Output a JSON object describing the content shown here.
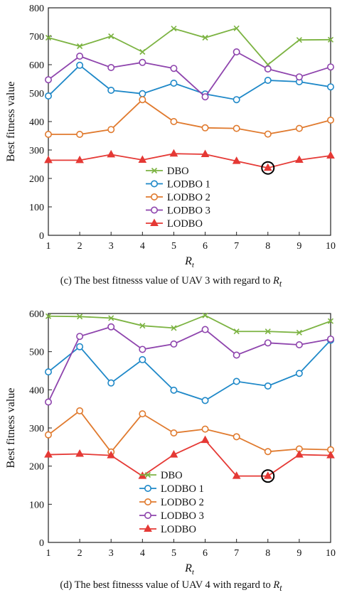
{
  "chart_data": [
    {
      "type": "line",
      "caption_main": "(c) The best fitnesss value of UAV 3 with regard to ",
      "caption_var": "R",
      "caption_sub": "t",
      "xlabel": "R",
      "xlabel_sub": "t",
      "ylabel": "Best fitness value",
      "x": [
        1,
        2,
        3,
        4,
        5,
        6,
        7,
        8,
        9,
        10
      ],
      "xlim": [
        1,
        10
      ],
      "ylim": [
        0,
        800
      ],
      "yticks": [
        0,
        100,
        200,
        300,
        400,
        500,
        600,
        700,
        800
      ],
      "grid": false,
      "legend_position": "lower-center",
      "highlight": {
        "x": 8,
        "series": "LODBO"
      },
      "series": [
        {
          "name": "DBO",
          "color": "#7cb342",
          "marker": "x",
          "values": [
            695,
            665,
            700,
            645,
            727,
            695,
            728,
            600,
            687,
            688
          ]
        },
        {
          "name": "LODBO 1",
          "color": "#1e88c8",
          "marker": "circle",
          "values": [
            490,
            598,
            510,
            498,
            535,
            497,
            477,
            545,
            540,
            522
          ]
        },
        {
          "name": "LODBO 2",
          "color": "#e07a2e",
          "marker": "circle",
          "values": [
            355,
            355,
            372,
            477,
            400,
            378,
            376,
            356,
            376,
            405
          ]
        },
        {
          "name": "LODBO 3",
          "color": "#8e44ad",
          "marker": "circle",
          "values": [
            547,
            630,
            590,
            608,
            587,
            487,
            645,
            585,
            557,
            592
          ]
        },
        {
          "name": "LODBO",
          "color": "#e53935",
          "marker": "triangle",
          "values": [
            264,
            264,
            284,
            265,
            287,
            285,
            261,
            237,
            265,
            280
          ]
        }
      ]
    },
    {
      "type": "line",
      "caption_main": "(d) The best fitnesss value of UAV 4 with regard to ",
      "caption_var": "R",
      "caption_sub": "t",
      "xlabel": "R",
      "xlabel_sub": "t",
      "ylabel": "Best fitness value",
      "x": [
        1,
        2,
        3,
        4,
        5,
        6,
        7,
        8,
        9,
        10
      ],
      "xlim": [
        1,
        10
      ],
      "ylim": [
        0,
        600
      ],
      "yticks": [
        0,
        100,
        200,
        300,
        400,
        500,
        600
      ],
      "grid": false,
      "legend_position": "lower-center",
      "highlight": {
        "x": 8,
        "series": "LODBO"
      },
      "series": [
        {
          "name": "DBO",
          "color": "#7cb342",
          "marker": "x",
          "values": [
            593,
            592,
            588,
            568,
            562,
            595,
            553,
            553,
            550,
            580
          ]
        },
        {
          "name": "LODBO 1",
          "color": "#1e88c8",
          "marker": "circle",
          "values": [
            447,
            513,
            418,
            479,
            399,
            372,
            422,
            410,
            443,
            530
          ]
        },
        {
          "name": "LODBO 2",
          "color": "#e07a2e",
          "marker": "circle",
          "values": [
            282,
            345,
            237,
            337,
            287,
            297,
            277,
            238,
            245,
            243
          ]
        },
        {
          "name": "LODBO 3",
          "color": "#8e44ad",
          "marker": "circle",
          "values": [
            368,
            540,
            565,
            506,
            520,
            558,
            491,
            523,
            518,
            533
          ]
        },
        {
          "name": "LODBO",
          "color": "#e53935",
          "marker": "triangle",
          "values": [
            230,
            232,
            228,
            174,
            230,
            268,
            174,
            174,
            230,
            228
          ]
        }
      ]
    }
  ]
}
